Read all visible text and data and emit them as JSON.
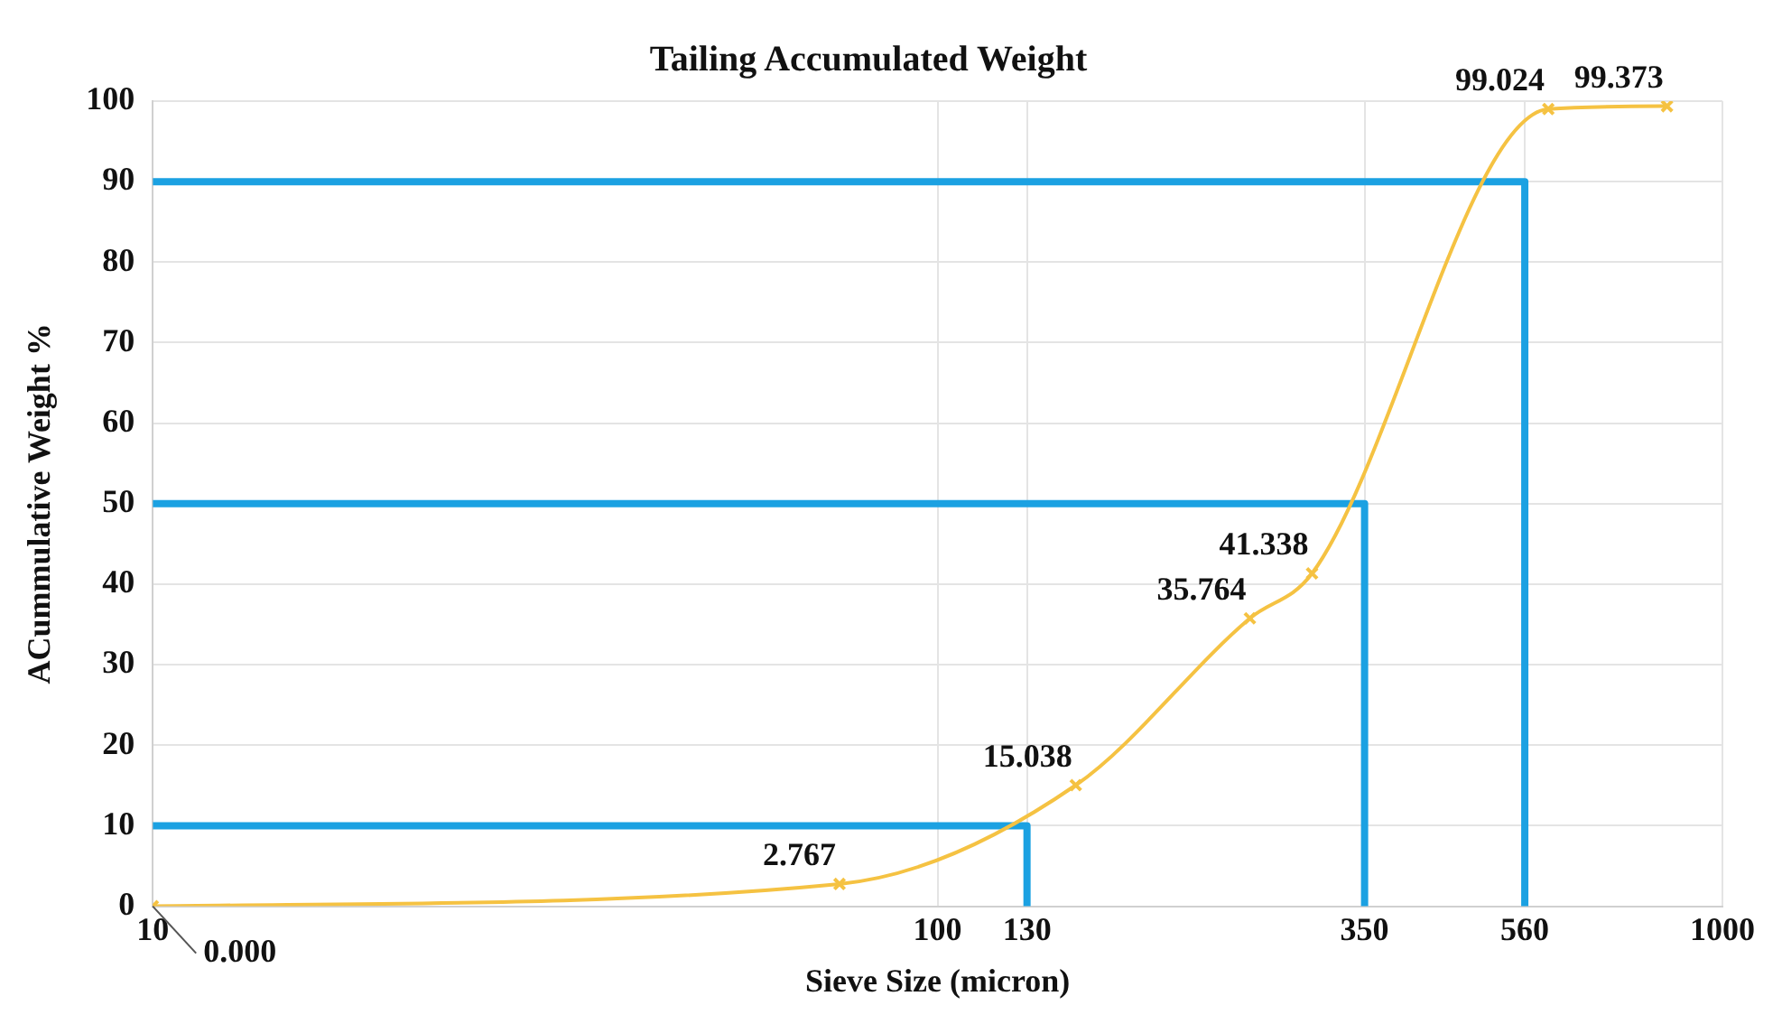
{
  "chart_data": {
    "type": "line",
    "title": "Tailing Accumulated Weight",
    "xlabel": "Sieve Size (micron)",
    "ylabel": "ACummulative Weight %",
    "log": "x",
    "xlim": [
      10,
      1000
    ],
    "xticks": [
      10,
      100,
      130,
      350,
      560,
      1000
    ],
    "ylim": [
      0,
      100
    ],
    "yticks": [
      0,
      10,
      20,
      30,
      40,
      50,
      60,
      70,
      80,
      90,
      100
    ],
    "grid": true,
    "legend": false,
    "series": [
      {
        "color": "#f5c242",
        "marker": "cross",
        "x": [
          10,
          75,
          150,
          250,
          300,
          600,
          850
        ],
        "values": [
          0,
          2.767,
          15.038,
          35.764,
          41.338,
          99.024,
          99.373
        ],
        "value_labels": [
          "0.000",
          "2.767",
          "15.038",
          "35.764",
          "41.338",
          "99.024",
          "99.373"
        ]
      },
      {
        "color": "#1ba1e2",
        "marker": "none",
        "x": [
          10,
          130,
          130
        ],
        "values": [
          10,
          10,
          0
        ]
      },
      {
        "color": "#1ba1e2",
        "marker": "none",
        "x": [
          10,
          350,
          350
        ],
        "values": [
          50,
          50,
          0
        ]
      },
      {
        "color": "#1ba1e2",
        "marker": "none",
        "x": [
          10,
          560,
          560
        ],
        "values": [
          90,
          90,
          0
        ]
      }
    ]
  }
}
